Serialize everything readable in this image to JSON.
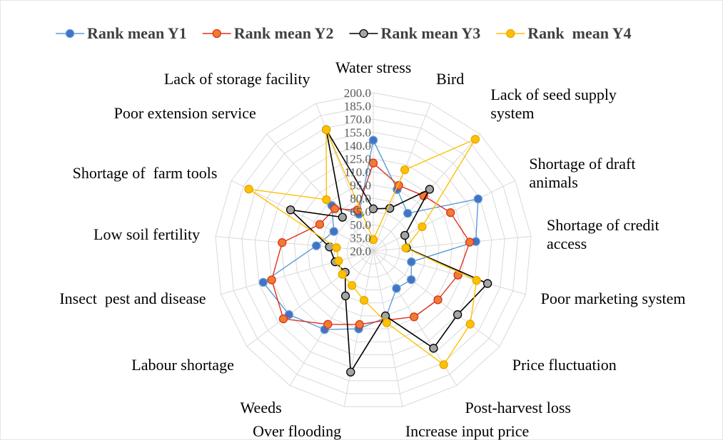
{
  "chart_data": {
    "type": "radar",
    "categories": [
      "Water stress",
      "Bird",
      "Lack of seed supply\nsystem",
      "Shortage of draft\nanimals",
      "Shortage of credit\naccess",
      "Poor marketing system",
      "Price fluctuation",
      "Post-harvest loss",
      "Increase input price",
      "Over flooding",
      "Weeds",
      "Labour shortage",
      "Insect  pest and disease",
      "Low soil fertility",
      "Shortage of  farm tools",
      "Poor extension service",
      "Lack of storage facility"
    ],
    "series": [
      {
        "name": "Rank mean Y1",
        "color": "#4472c4",
        "line_color": "#5b9bd5",
        "values": [
          146,
          95,
          78,
          153,
          137,
          65,
          74,
          70,
          97,
          110,
          125,
          140,
          150,
          85,
          70,
          90,
          65
        ]
      },
      {
        "name": "Rank mean Y2",
        "color": "#ed7d31",
        "line_color": "#e0301e",
        "values": [
          120,
          100,
          105,
          118,
          130,
          120,
          112,
          108,
          100,
          105,
          118,
          148,
          140,
          124,
          88,
          85,
          70
        ]
      },
      {
        "name": "Rank mean Y3",
        "color": "#a5a5a5",
        "line_color": "#000000",
        "values": [
          68,
          72,
          115,
          60,
          58,
          155,
          140,
          150,
          95,
          160,
          80,
          60,
          65,
          70,
          125,
          72,
          168
        ]
      },
      {
        "name": "Rank  mean Y4",
        "color": "#ffc000",
        "line_color": "#ffc000",
        "values": [
          33,
          119,
          192,
          82,
          57,
          142,
          158,
          172,
          103,
          77,
          66,
          64,
          61,
          62,
          178,
          99,
          168
        ]
      }
    ],
    "ylim": [
      20,
      200
    ],
    "yticks": [
      {
        "value": 20,
        "label": "20.0"
      },
      {
        "value": 35,
        "label": "35.0"
      },
      {
        "value": 50,
        "label": "50.0"
      },
      {
        "value": 65,
        "label": "65.0"
      },
      {
        "value": 80,
        "label": "80.0"
      },
      {
        "value": 95,
        "label": "95.0"
      },
      {
        "value": 110,
        "label": "110.0"
      },
      {
        "value": 125,
        "label": "125.0"
      },
      {
        "value": 140,
        "label": "140.0"
      },
      {
        "value": 155,
        "label": "155.0"
      },
      {
        "value": 170,
        "label": "170.0"
      },
      {
        "value": 185,
        "label": "185.0"
      },
      {
        "value": 200,
        "label": "200.0"
      }
    ],
    "grid": true,
    "legend": "top"
  }
}
